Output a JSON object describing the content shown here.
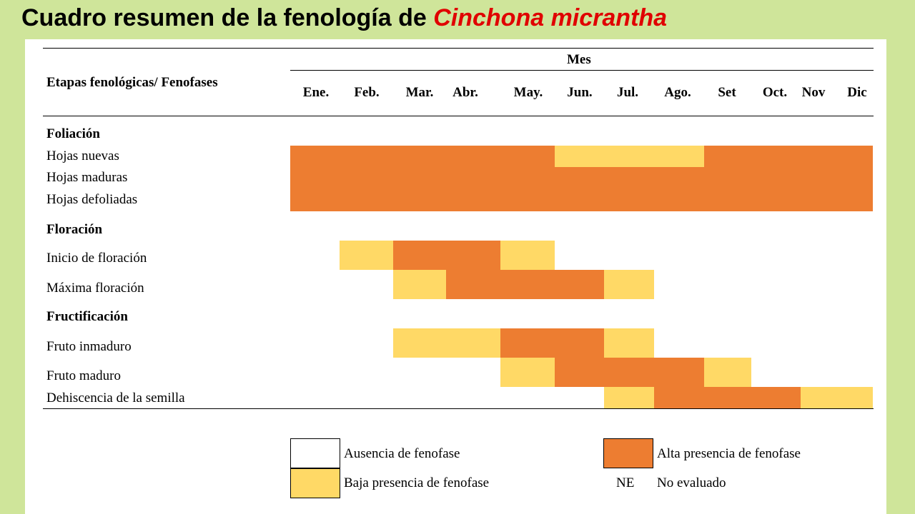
{
  "title": {
    "prefix": "Cuadro resumen de la fenología de",
    "species": "Cinchona micrantha"
  },
  "table": {
    "corner_header": "Etapas fenológicas/ Fenofases",
    "group_header": "Mes",
    "months": [
      "Ene.",
      "Feb.",
      "Mar.",
      "Abr.",
      "May.",
      "Jun.",
      "Jul.",
      "Ago.",
      "Set",
      "Oct.",
      "Nov",
      "Dic"
    ],
    "sections": [
      {
        "label": "Foliación"
      },
      {
        "label": "Floración"
      },
      {
        "label": "Fructificación"
      }
    ],
    "rows": [
      {
        "label": "Hojas nuevas",
        "levels": [
          "alta",
          "alta",
          "alta",
          "alta",
          "alta",
          "baja",
          "baja",
          "baja",
          "alta",
          "alta",
          "alta",
          "alta"
        ]
      },
      {
        "label": "Hojas maduras",
        "levels": [
          "alta",
          "alta",
          "alta",
          "alta",
          "alta",
          "alta",
          "alta",
          "alta",
          "alta",
          "alta",
          "alta",
          "alta"
        ]
      },
      {
        "label": "Hojas defoliadas",
        "levels": [
          "alta",
          "alta",
          "alta",
          "alta",
          "alta",
          "alta",
          "alta",
          "alta",
          "alta",
          "alta",
          "alta",
          "alta"
        ]
      },
      {
        "label": "Inicio de floración",
        "levels": [
          "ausencia",
          "baja",
          "alta",
          "alta",
          "baja",
          "ausencia",
          "ausencia",
          "ausencia",
          "ausencia",
          "ausencia",
          "ausencia",
          "ausencia"
        ]
      },
      {
        "label": "Máxima floración",
        "levels": [
          "ausencia",
          "ausencia",
          "baja",
          "alta",
          "alta",
          "alta",
          "baja",
          "ausencia",
          "ausencia",
          "ausencia",
          "ausencia",
          "ausencia"
        ]
      },
      {
        "label": "Fruto inmaduro",
        "levels": [
          "ausencia",
          "ausencia",
          "baja",
          "baja",
          "alta",
          "alta",
          "baja",
          "ausencia",
          "ausencia",
          "ausencia",
          "ausencia",
          "ausencia"
        ]
      },
      {
        "label": "Fruto maduro",
        "levels": [
          "ausencia",
          "ausencia",
          "ausencia",
          "ausencia",
          "baja",
          "alta",
          "alta",
          "alta",
          "baja",
          "ausencia",
          "ausencia",
          "ausencia"
        ]
      },
      {
        "label": "Dehiscencia de la semilla",
        "levels": [
          "ausencia",
          "ausencia",
          "ausencia",
          "ausencia",
          "ausencia",
          "ausencia",
          "baja",
          "alta",
          "alta",
          "alta",
          "baja",
          "baja"
        ]
      }
    ]
  },
  "legend": {
    "ausencia": "Ausencia de fenofase",
    "baja": "Baja presencia de fenofase",
    "alta": "Alta presencia de fenofase",
    "ne_code": "NE",
    "ne": "No evaluado"
  },
  "colors": {
    "alta": "#ed7d31",
    "baja": "#ffd966",
    "ausencia": "#ffffff",
    "background": "#cfe59a",
    "title_species": "#e00000"
  }
}
